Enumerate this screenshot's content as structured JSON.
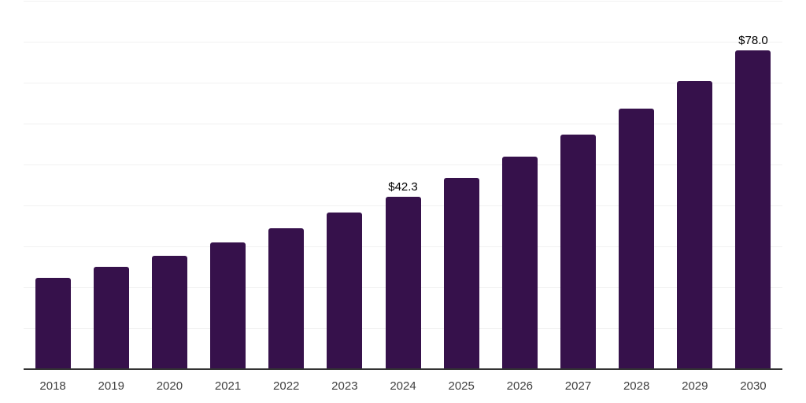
{
  "chart_data": {
    "type": "bar",
    "title": "",
    "xlabel": "",
    "ylabel": "",
    "categories": [
      "2018",
      "2019",
      "2020",
      "2021",
      "2022",
      "2023",
      "2024",
      "2025",
      "2026",
      "2027",
      "2028",
      "2029",
      "2030"
    ],
    "values": [
      22.5,
      25.1,
      27.9,
      31.1,
      34.5,
      38.4,
      42.3,
      46.8,
      52.0,
      57.4,
      63.8,
      70.5,
      78.0
    ],
    "data_labels": [
      "",
      "",
      "",
      "",
      "",
      "",
      "$42.3",
      "",
      "",
      "",
      "",
      "",
      "$78.0"
    ],
    "ylim": [
      0,
      90.3
    ],
    "gridline_interval": 10,
    "grid_visible": true,
    "legend_position": "none",
    "colors": {
      "bar": "#36114b",
      "gridline": "#f1f1f1",
      "axis_line": "#333333",
      "tick_label": "#404040",
      "value_label": "#000000"
    }
  }
}
